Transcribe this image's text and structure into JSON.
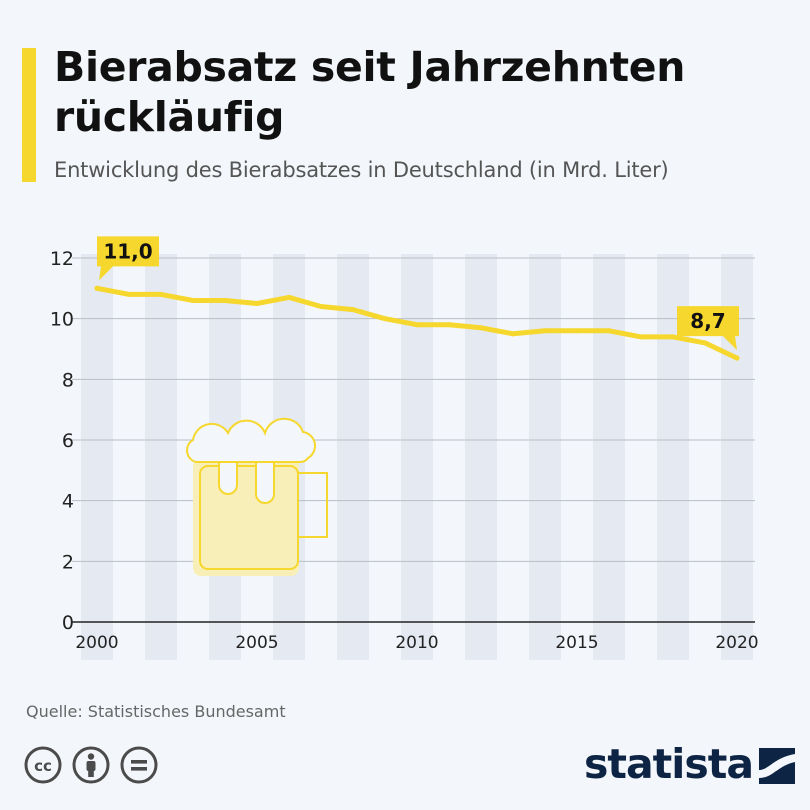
{
  "header": {
    "title": "Bierabsatz seit Jahrzehnten rückläufig",
    "subtitle": "Entwicklung des Bierabsatzes in Deutschland (in Mrd. Liter)"
  },
  "footer": {
    "source": "Quelle: Statistisches Bundesamt",
    "brand": "statista"
  },
  "icons": [
    "cc-icon",
    "by-icon",
    "nd-icon",
    "beer-mug-icon"
  ],
  "colors": {
    "line": "#f6d72e",
    "stripe": "#e4e9f2",
    "accent": "#f6d72e",
    "brand": "#0d2444"
  },
  "chart_data": {
    "type": "line",
    "title": "Bierabsatz seit Jahrzehnten rückläufig",
    "subtitle": "Entwicklung des Bierabsatzes in Deutschland (in Mrd. Liter)",
    "x": [
      2000,
      2001,
      2002,
      2003,
      2004,
      2005,
      2006,
      2007,
      2008,
      2009,
      2010,
      2011,
      2012,
      2013,
      2014,
      2015,
      2016,
      2017,
      2018,
      2019,
      2020
    ],
    "values": [
      11.0,
      10.8,
      10.8,
      10.6,
      10.6,
      10.5,
      10.7,
      10.4,
      10.3,
      10.0,
      9.8,
      9.8,
      9.7,
      9.5,
      9.6,
      9.6,
      9.6,
      9.4,
      9.4,
      9.2,
      8.7
    ],
    "xticks": [
      "2000",
      "2005",
      "2010",
      "2015",
      "2020"
    ],
    "yticks": [
      "0",
      "2",
      "4",
      "6",
      "8",
      "10",
      "12"
    ],
    "ylim": [
      0,
      12
    ],
    "xlim": [
      2000,
      2020
    ],
    "grid": true,
    "annotations": [
      {
        "x": 2000,
        "label": "11,0"
      },
      {
        "x": 2020,
        "label": "8,7"
      }
    ]
  }
}
